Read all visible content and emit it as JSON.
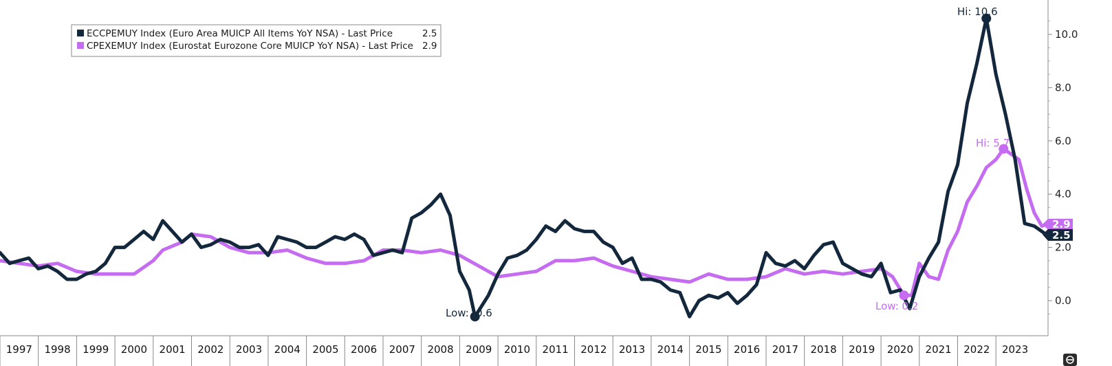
{
  "colors": {
    "ecc": "#13283d",
    "core": "#c56cf0",
    "axis": "#888888"
  },
  "legend": {
    "items": [
      {
        "label": "ECCPEMUY Index (Euro Area MUICP All Items YoY NSA) - Last Price",
        "value": "2.5"
      },
      {
        "label": "CPEXEMUY Index (Eurostat Eurozone Core MUICP YoY NSA) - Last Price",
        "value": "2.9"
      }
    ]
  },
  "annotations": {
    "ecc_hi": "Hi: 10.6",
    "ecc_low": "Low: -0.6",
    "core_hi": "Hi: 5.7",
    "core_low": "Low: 0.2"
  },
  "last_tags": {
    "ecc": "2.5",
    "core": "2.9"
  },
  "side_icon": "scroll-icon",
  "chart_data": {
    "type": "line",
    "title": "",
    "xlabel": "",
    "ylabel": "",
    "x_range": [
      1997.0,
      2024.0
    ],
    "ylim": [
      -0.8,
      11.0
    ],
    "grid": false,
    "legend_position": "top-left",
    "x_ticks": [
      "1997",
      "1998",
      "1999",
      "2000",
      "2001",
      "2002",
      "2003",
      "2004",
      "2005",
      "2006",
      "2007",
      "2008",
      "2009",
      "2010",
      "2011",
      "2012",
      "2013",
      "2014",
      "2015",
      "2016",
      "2017",
      "2018",
      "2019",
      "2020",
      "2021",
      "2022",
      "2023"
    ],
    "y_ticks": [
      "0.0",
      "2.0",
      "4.0",
      "6.0",
      "8.0",
      "10.0"
    ],
    "series": [
      {
        "name": "ECCPEMUY Index (Euro Area MUICP All Items YoY NSA) - Last Price",
        "points": [
          [
            1997.0,
            1.8
          ],
          [
            1997.25,
            1.4
          ],
          [
            1997.5,
            1.5
          ],
          [
            1997.75,
            1.6
          ],
          [
            1998.0,
            1.2
          ],
          [
            1998.25,
            1.3
          ],
          [
            1998.5,
            1.1
          ],
          [
            1998.75,
            0.8
          ],
          [
            1999.0,
            0.8
          ],
          [
            1999.25,
            1.0
          ],
          [
            1999.5,
            1.1
          ],
          [
            1999.75,
            1.4
          ],
          [
            2000.0,
            2.0
          ],
          [
            2000.25,
            2.0
          ],
          [
            2000.5,
            2.3
          ],
          [
            2000.75,
            2.6
          ],
          [
            2001.0,
            2.3
          ],
          [
            2001.25,
            3.0
          ],
          [
            2001.5,
            2.6
          ],
          [
            2001.75,
            2.2
          ],
          [
            2002.0,
            2.5
          ],
          [
            2002.25,
            2.0
          ],
          [
            2002.5,
            2.1
          ],
          [
            2002.75,
            2.3
          ],
          [
            2003.0,
            2.2
          ],
          [
            2003.25,
            2.0
          ],
          [
            2003.5,
            2.0
          ],
          [
            2003.75,
            2.1
          ],
          [
            2004.0,
            1.7
          ],
          [
            2004.25,
            2.4
          ],
          [
            2004.5,
            2.3
          ],
          [
            2004.75,
            2.2
          ],
          [
            2005.0,
            2.0
          ],
          [
            2005.25,
            2.0
          ],
          [
            2005.5,
            2.2
          ],
          [
            2005.75,
            2.4
          ],
          [
            2006.0,
            2.3
          ],
          [
            2006.25,
            2.5
          ],
          [
            2006.5,
            2.3
          ],
          [
            2006.75,
            1.7
          ],
          [
            2007.0,
            1.8
          ],
          [
            2007.25,
            1.9
          ],
          [
            2007.5,
            1.8
          ],
          [
            2007.75,
            3.1
          ],
          [
            2008.0,
            3.3
          ],
          [
            2008.25,
            3.6
          ],
          [
            2008.5,
            4.0
          ],
          [
            2008.75,
            3.2
          ],
          [
            2009.0,
            1.1
          ],
          [
            2009.25,
            0.4
          ],
          [
            2009.4,
            -0.6
          ],
          [
            2009.75,
            0.2
          ],
          [
            2010.0,
            1.0
          ],
          [
            2010.25,
            1.6
          ],
          [
            2010.5,
            1.7
          ],
          [
            2010.75,
            1.9
          ],
          [
            2011.0,
            2.3
          ],
          [
            2011.25,
            2.8
          ],
          [
            2011.5,
            2.6
          ],
          [
            2011.75,
            3.0
          ],
          [
            2012.0,
            2.7
          ],
          [
            2012.25,
            2.6
          ],
          [
            2012.5,
            2.6
          ],
          [
            2012.75,
            2.2
          ],
          [
            2013.0,
            2.0
          ],
          [
            2013.25,
            1.4
          ],
          [
            2013.5,
            1.6
          ],
          [
            2013.75,
            0.8
          ],
          [
            2014.0,
            0.8
          ],
          [
            2014.25,
            0.7
          ],
          [
            2014.5,
            0.4
          ],
          [
            2014.75,
            0.3
          ],
          [
            2015.0,
            -0.6
          ],
          [
            2015.25,
            0.0
          ],
          [
            2015.5,
            0.2
          ],
          [
            2015.75,
            0.1
          ],
          [
            2016.0,
            0.3
          ],
          [
            2016.25,
            -0.1
          ],
          [
            2016.5,
            0.2
          ],
          [
            2016.75,
            0.6
          ],
          [
            2017.0,
            1.8
          ],
          [
            2017.25,
            1.4
          ],
          [
            2017.5,
            1.3
          ],
          [
            2017.75,
            1.5
          ],
          [
            2018.0,
            1.2
          ],
          [
            2018.25,
            1.7
          ],
          [
            2018.5,
            2.1
          ],
          [
            2018.75,
            2.2
          ],
          [
            2019.0,
            1.4
          ],
          [
            2019.25,
            1.2
          ],
          [
            2019.5,
            1.0
          ],
          [
            2019.75,
            0.9
          ],
          [
            2020.0,
            1.4
          ],
          [
            2020.25,
            0.3
          ],
          [
            2020.5,
            0.4
          ],
          [
            2020.75,
            -0.3
          ],
          [
            2021.0,
            0.9
          ],
          [
            2021.25,
            1.6
          ],
          [
            2021.5,
            2.2
          ],
          [
            2021.75,
            4.1
          ],
          [
            2022.0,
            5.1
          ],
          [
            2022.25,
            7.4
          ],
          [
            2022.5,
            8.9
          ],
          [
            2022.75,
            10.6
          ],
          [
            2023.0,
            8.5
          ],
          [
            2023.25,
            7.0
          ],
          [
            2023.5,
            5.3
          ],
          [
            2023.75,
            2.9
          ],
          [
            2024.0,
            2.8
          ],
          [
            2024.3,
            2.5
          ]
        ]
      },
      {
        "name": "CPEXEMUY Index (Eurostat Eurozone Core MUICP YoY NSA) - Last Price",
        "points": [
          [
            1997.0,
            1.5
          ],
          [
            1997.5,
            1.4
          ],
          [
            1998.0,
            1.3
          ],
          [
            1998.5,
            1.4
          ],
          [
            1999.0,
            1.1
          ],
          [
            1999.5,
            1.0
          ],
          [
            2000.0,
            1.0
          ],
          [
            2000.5,
            1.0
          ],
          [
            2001.0,
            1.5
          ],
          [
            2001.25,
            1.9
          ],
          [
            2001.75,
            2.2
          ],
          [
            2002.0,
            2.5
          ],
          [
            2002.5,
            2.4
          ],
          [
            2003.0,
            2.0
          ],
          [
            2003.5,
            1.8
          ],
          [
            2004.0,
            1.8
          ],
          [
            2004.5,
            1.9
          ],
          [
            2005.0,
            1.6
          ],
          [
            2005.5,
            1.4
          ],
          [
            2006.0,
            1.4
          ],
          [
            2006.5,
            1.5
          ],
          [
            2007.0,
            1.9
          ],
          [
            2007.5,
            1.9
          ],
          [
            2008.0,
            1.8
          ],
          [
            2008.5,
            1.9
          ],
          [
            2009.0,
            1.7
          ],
          [
            2009.5,
            1.3
          ],
          [
            2010.0,
            0.9
          ],
          [
            2010.5,
            1.0
          ],
          [
            2011.0,
            1.1
          ],
          [
            2011.5,
            1.5
          ],
          [
            2012.0,
            1.5
          ],
          [
            2012.5,
            1.6
          ],
          [
            2013.0,
            1.3
          ],
          [
            2013.5,
            1.1
          ],
          [
            2014.0,
            0.9
          ],
          [
            2014.5,
            0.8
          ],
          [
            2015.0,
            0.7
          ],
          [
            2015.5,
            1.0
          ],
          [
            2016.0,
            0.8
          ],
          [
            2016.5,
            0.8
          ],
          [
            2017.0,
            0.9
          ],
          [
            2017.5,
            1.2
          ],
          [
            2018.0,
            1.0
          ],
          [
            2018.5,
            1.1
          ],
          [
            2019.0,
            1.0
          ],
          [
            2019.5,
            1.1
          ],
          [
            2020.0,
            1.2
          ],
          [
            2020.3,
            0.9
          ],
          [
            2020.6,
            0.2
          ],
          [
            2020.8,
            0.2
          ],
          [
            2021.0,
            1.4
          ],
          [
            2021.25,
            0.9
          ],
          [
            2021.5,
            0.8
          ],
          [
            2021.75,
            1.9
          ],
          [
            2022.0,
            2.6
          ],
          [
            2022.25,
            3.7
          ],
          [
            2022.5,
            4.3
          ],
          [
            2022.75,
            5.0
          ],
          [
            2023.0,
            5.3
          ],
          [
            2023.2,
            5.7
          ],
          [
            2023.4,
            5.5
          ],
          [
            2023.6,
            5.3
          ],
          [
            2023.8,
            4.2
          ],
          [
            2024.0,
            3.3
          ],
          [
            2024.2,
            2.8
          ],
          [
            2024.4,
            2.9
          ]
        ]
      }
    ]
  }
}
